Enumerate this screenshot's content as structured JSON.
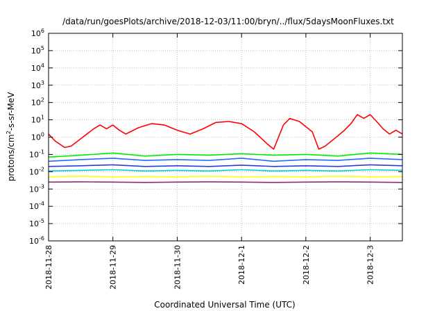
{
  "chart_data": {
    "type": "line",
    "title": "/data/run/goesPlots/archive/2018-12-03/11:00/bryn/../flux/5daysMoonFluxes.txt",
    "xlabel": "Coordinated Universal Time (UTC)",
    "ylabel": {
      "base": "protons/cm",
      "exp": "2",
      "rest": "-s-sr-MeV"
    },
    "y_scale": "log",
    "ylim_exp": [
      -6,
      6
    ],
    "y_ticks": [
      {
        "base": "10",
        "exp": "-6",
        "value": -6
      },
      {
        "base": "10",
        "exp": "-5",
        "value": -5
      },
      {
        "base": "10",
        "exp": "-4",
        "value": -4
      },
      {
        "base": "10",
        "exp": "-3",
        "value": -3
      },
      {
        "base": "10",
        "exp": "-2",
        "value": -2
      },
      {
        "base": "10",
        "exp": "-1",
        "value": -1
      },
      {
        "base": "10",
        "exp": "0",
        "value": 0
      },
      {
        "base": "10",
        "exp": "1",
        "value": 1
      },
      {
        "base": "10",
        "exp": "2",
        "value": 2
      },
      {
        "base": "10",
        "exp": "3",
        "value": 3
      },
      {
        "base": "10",
        "exp": "4",
        "value": 4
      },
      {
        "base": "10",
        "exp": "5",
        "value": 5
      },
      {
        "base": "10",
        "exp": "6",
        "value": 6
      }
    ],
    "xlim_days": [
      0,
      5.5
    ],
    "x_ticks": [
      {
        "label": "2018-11-28",
        "day": 0
      },
      {
        "label": "2018-11-29",
        "day": 1
      },
      {
        "label": "2018-11-30",
        "day": 2
      },
      {
        "label": "2018-12-1",
        "day": 3
      },
      {
        "label": "2018-12-2",
        "day": 4
      },
      {
        "label": "2018-12-3",
        "day": 5
      }
    ],
    "grid": true,
    "series": [
      {
        "color": "#ff0000",
        "x": [
          0,
          0.1,
          0.25,
          0.35,
          0.5,
          0.7,
          0.8,
          0.9,
          1.0,
          1.1,
          1.2,
          1.4,
          1.6,
          1.8,
          2.0,
          2.2,
          2.4,
          2.6,
          2.8,
          3.0,
          3.2,
          3.4,
          3.5,
          3.65,
          3.75,
          3.9,
          4.1,
          4.2,
          4.3,
          4.5,
          4.6,
          4.7,
          4.8,
          4.9,
          5.0,
          5.1,
          5.2,
          5.3,
          5.4,
          5.5
        ],
        "y": [
          1.5,
          0.6,
          0.25,
          0.3,
          0.8,
          3,
          5,
          3,
          5,
          2.5,
          1.5,
          3.5,
          6,
          5,
          2.5,
          1.5,
          3,
          7,
          8,
          6,
          2,
          0.4,
          0.2,
          5,
          12,
          8,
          2,
          0.2,
          0.3,
          1.2,
          2.5,
          6,
          20,
          12,
          20,
          8,
          3,
          1.5,
          2.5,
          1.5
        ]
      },
      {
        "color": "#00ee00",
        "x": [
          0,
          0.5,
          1.0,
          1.5,
          2.0,
          2.5,
          3.0,
          3.5,
          4.0,
          4.5,
          5.0,
          5.5
        ],
        "y": [
          0.07,
          0.09,
          0.12,
          0.08,
          0.1,
          0.09,
          0.11,
          0.09,
          0.1,
          0.08,
          0.12,
          0.1
        ]
      },
      {
        "color": "#1e6bff",
        "x": [
          0,
          0.5,
          1.0,
          1.5,
          2.0,
          2.5,
          3.0,
          3.5,
          4.0,
          4.5,
          5.0,
          5.5
        ],
        "y": [
          0.04,
          0.05,
          0.06,
          0.045,
          0.05,
          0.045,
          0.06,
          0.04,
          0.05,
          0.045,
          0.06,
          0.05
        ]
      },
      {
        "color": "#2a3bdc",
        "x": [
          0,
          0.5,
          1.0,
          1.5,
          2.0,
          2.5,
          3.0,
          3.5,
          4.0,
          4.5,
          5.0,
          5.5
        ],
        "y": [
          0.02,
          0.022,
          0.025,
          0.02,
          0.022,
          0.02,
          0.024,
          0.02,
          0.022,
          0.02,
          0.025,
          0.022
        ]
      },
      {
        "color": "#00d0d0",
        "x": [
          0,
          0.5,
          1.0,
          1.5,
          2.0,
          2.5,
          3.0,
          3.5,
          4.0,
          4.5,
          5.0,
          5.5
        ],
        "y": [
          0.011,
          0.012,
          0.013,
          0.011,
          0.012,
          0.011,
          0.013,
          0.011,
          0.012,
          0.011,
          0.013,
          0.012
        ]
      },
      {
        "color": "#ffff00",
        "x": [
          0,
          0.5,
          1.0,
          1.5,
          2.0,
          2.5,
          3.0,
          3.5,
          4.0,
          4.5,
          5.0,
          5.5
        ],
        "y": [
          0.005,
          0.0055,
          0.005,
          0.0052,
          0.005,
          0.0054,
          0.005,
          0.0052,
          0.005,
          0.0054,
          0.005,
          0.0052
        ]
      },
      {
        "color": "#8b2a7a",
        "x": [
          0,
          0.5,
          1.0,
          1.5,
          2.0,
          2.5,
          3.0,
          3.5,
          4.0,
          4.5,
          5.0,
          5.5
        ],
        "y": [
          0.0025,
          0.0026,
          0.0025,
          0.0024,
          0.0025,
          0.0026,
          0.0025,
          0.0024,
          0.0025,
          0.0026,
          0.0025,
          0.0024
        ]
      }
    ]
  }
}
